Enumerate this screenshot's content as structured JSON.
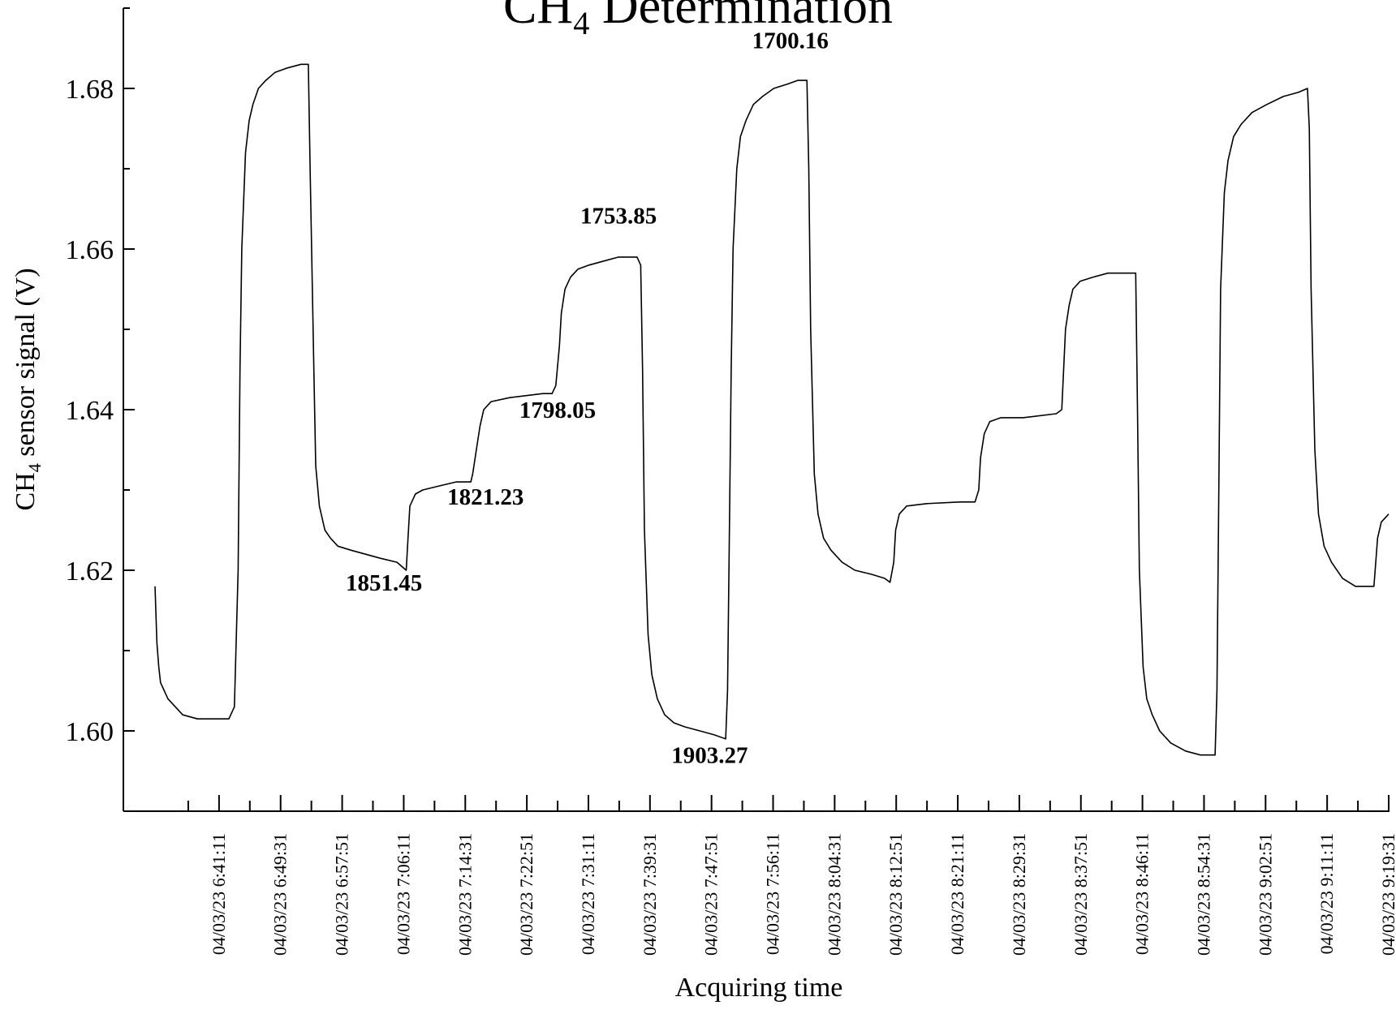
{
  "chart_data": {
    "type": "line",
    "title": {
      "main": "CH",
      "sub": "4",
      "rest": " Determination"
    },
    "xlabel": "Acquiring time",
    "ylabel": {
      "main": "CH",
      "sub": "4",
      "rest": " sensor signal (V)"
    },
    "ylim": [
      1.59,
      1.69
    ],
    "yticks": [
      1.6,
      1.62,
      1.64,
      1.66,
      1.68
    ],
    "ytick_labels": [
      "1.60",
      "1.62",
      "1.64",
      "1.66",
      "1.68"
    ],
    "xlim": [
      "04/03/23 6:32:31",
      "04/03/23 9:19:31"
    ],
    "xtick_labels": [
      "04/03/23 6:41:11",
      "04/03/23 6:49:31",
      "04/03/23 6:57:51",
      "04/03/23 7:06:11",
      "04/03/23 7:14:31",
      "04/03/23 7:22:51",
      "04/03/23 7:31:11",
      "04/03/23 7:39:31",
      "04/03/23 7:47:51",
      "04/03/23 7:56:11",
      "04/03/23 8:04:31",
      "04/03/23 8:12:51",
      "04/03/23 8:21:11",
      "04/03/23 8:29:31",
      "04/03/23 8:37:51",
      "04/03/23 8:46:11",
      "04/03/23 8:54:31",
      "04/03/23 9:02:51",
      "04/03/23 9:11:11",
      "04/03/23 9:19:31"
    ],
    "grid": false,
    "legend": "none",
    "series": [
      {
        "color": "#000000",
        "points": [
          [
            "04/03/23 6:32:31",
            1.618
          ],
          [
            "04/03/23 6:32:46",
            1.611
          ],
          [
            "04/03/23 6:33:01",
            1.608
          ],
          [
            "04/03/23 6:33:16",
            1.606
          ],
          [
            "04/03/23 6:33:46",
            1.605
          ],
          [
            "04/03/23 6:34:16",
            1.604
          ],
          [
            "04/03/23 6:35:16",
            1.603
          ],
          [
            "04/03/23 6:36:16",
            1.602
          ],
          [
            "04/03/23 6:38:16",
            1.6015
          ],
          [
            "04/03/23 6:40:31",
            1.6015
          ],
          [
            "04/03/23 6:42:31",
            1.6015
          ],
          [
            "04/03/23 6:43:16",
            1.603
          ],
          [
            "04/03/23 6:43:46",
            1.62
          ],
          [
            "04/03/23 6:44:01",
            1.645
          ],
          [
            "04/03/23 6:44:16",
            1.66
          ],
          [
            "04/03/23 6:44:46",
            1.672
          ],
          [
            "04/03/23 6:45:16",
            1.676
          ],
          [
            "04/03/23 6:45:46",
            1.678
          ],
          [
            "04/03/23 6:46:31",
            1.68
          ],
          [
            "04/03/23 6:47:31",
            1.681
          ],
          [
            "04/03/23 6:48:46",
            1.682
          ],
          [
            "04/03/23 6:50:16",
            1.6825
          ],
          [
            "04/03/23 6:52:16",
            1.683
          ],
          [
            "04/03/23 6:53:16",
            1.683
          ],
          [
            "04/03/23 6:53:31",
            1.67
          ],
          [
            "04/03/23 6:54:01",
            1.645
          ],
          [
            "04/03/23 6:54:16",
            1.633
          ],
          [
            "04/03/23 6:54:46",
            1.628
          ],
          [
            "04/03/23 6:55:31",
            1.625
          ],
          [
            "04/03/23 6:56:16",
            1.624
          ],
          [
            "04/03/23 6:57:16",
            1.623
          ],
          [
            "04/03/23 6:59:01",
            1.6225
          ],
          [
            "04/03/23 7:01:01",
            1.622
          ],
          [
            "04/03/23 7:03:01",
            1.6215
          ],
          [
            "04/03/23 7:05:16",
            1.621
          ],
          [
            "04/03/23 7:06:31",
            1.62
          ],
          [
            "04/03/23 7:06:46",
            1.624
          ],
          [
            "04/03/23 7:07:01",
            1.628
          ],
          [
            "04/03/23 7:07:46",
            1.6295
          ],
          [
            "04/03/23 7:08:46",
            1.63
          ],
          [
            "04/03/23 7:11:01",
            1.6305
          ],
          [
            "04/03/23 7:13:16",
            1.631
          ],
          [
            "04/03/23 7:14:16",
            1.631
          ],
          [
            "04/03/23 7:15:16",
            1.631
          ],
          [
            "04/03/23 7:15:31",
            1.632
          ],
          [
            "04/03/23 7:16:01",
            1.635
          ],
          [
            "04/03/23 7:16:31",
            1.638
          ],
          [
            "04/03/23 7:17:01",
            1.64
          ],
          [
            "04/03/23 7:18:01",
            1.641
          ],
          [
            "04/03/23 7:20:31",
            1.6415
          ],
          [
            "04/03/23 7:25:01",
            1.642
          ],
          [
            "04/03/23 7:26:16",
            1.642
          ],
          [
            "04/03/23 7:26:46",
            1.643
          ],
          [
            "04/03/23 7:27:16",
            1.648
          ],
          [
            "04/03/23 7:27:31",
            1.652
          ],
          [
            "04/03/23 7:28:01",
            1.655
          ],
          [
            "04/03/23 7:28:46",
            1.6565
          ],
          [
            "04/03/23 7:29:46",
            1.6575
          ],
          [
            "04/03/23 7:31:16",
            1.658
          ],
          [
            "04/03/23 7:33:16",
            1.6585
          ],
          [
            "04/03/23 7:35:16",
            1.659
          ],
          [
            "04/03/23 7:37:46",
            1.659
          ],
          [
            "04/03/23 7:38:16",
            1.658
          ],
          [
            "04/03/23 7:38:31",
            1.645
          ],
          [
            "04/03/23 7:38:46",
            1.625
          ],
          [
            "04/03/23 7:39:16",
            1.612
          ],
          [
            "04/03/23 7:39:46",
            1.607
          ],
          [
            "04/03/23 7:40:31",
            1.604
          ],
          [
            "04/03/23 7:41:31",
            1.602
          ],
          [
            "04/03/23 7:42:46",
            1.601
          ],
          [
            "04/03/23 7:44:16",
            1.6005
          ],
          [
            "04/03/23 7:46:16",
            1.6
          ],
          [
            "04/03/23 7:48:16",
            1.5995
          ],
          [
            "04/03/23 7:49:46",
            1.599
          ],
          [
            "04/03/23 7:50:01",
            1.605
          ],
          [
            "04/03/23 7:50:16",
            1.625
          ],
          [
            "04/03/23 7:50:31",
            1.645
          ],
          [
            "04/03/23 7:50:46",
            1.66
          ],
          [
            "04/03/23 7:51:16",
            1.67
          ],
          [
            "04/03/23 7:51:46",
            1.674
          ],
          [
            "04/03/23 7:52:31",
            1.676
          ],
          [
            "04/03/23 7:53:31",
            1.678
          ],
          [
            "04/03/23 7:54:46",
            1.679
          ],
          [
            "04/03/23 7:56:16",
            1.68
          ],
          [
            "04/03/23 7:58:01",
            1.6805
          ],
          [
            "04/03/23 7:59:31",
            1.681
          ],
          [
            "04/03/23 8:00:46",
            1.681
          ],
          [
            "04/03/23 8:01:01",
            1.67
          ],
          [
            "04/03/23 8:01:16",
            1.65
          ],
          [
            "04/03/23 8:01:46",
            1.632
          ],
          [
            "04/03/23 8:02:16",
            1.627
          ],
          [
            "04/03/23 8:03:01",
            1.624
          ],
          [
            "04/03/23 8:04:01",
            1.6225
          ],
          [
            "04/03/23 8:05:31",
            1.621
          ],
          [
            "04/03/23 8:07:16",
            1.62
          ],
          [
            "04/03/23 8:09:31",
            1.6195
          ],
          [
            "04/03/23 8:11:16",
            1.619
          ],
          [
            "04/03/23 8:12:01",
            1.6185
          ],
          [
            "04/03/23 8:12:31",
            1.621
          ],
          [
            "04/03/23 8:12:46",
            1.625
          ],
          [
            "04/03/23 8:13:16",
            1.627
          ],
          [
            "04/03/23 8:14:16",
            1.628
          ],
          [
            "04/03/23 8:17:01",
            1.6283
          ],
          [
            "04/03/23 8:21:31",
            1.6285
          ],
          [
            "04/03/23 8:23:31",
            1.6285
          ],
          [
            "04/03/23 8:24:01",
            1.63
          ],
          [
            "04/03/23 8:24:16",
            1.634
          ],
          [
            "04/03/23 8:24:46",
            1.637
          ],
          [
            "04/03/23 8:25:31",
            1.6385
          ],
          [
            "04/03/23 8:27:01",
            1.639
          ],
          [
            "04/03/23 8:30:01",
            1.639
          ],
          [
            "04/03/23 8:34:31",
            1.6395
          ],
          [
            "04/03/23 8:35:16",
            1.64
          ],
          [
            "04/03/23 8:35:31",
            1.645
          ],
          [
            "04/03/23 8:35:46",
            1.65
          ],
          [
            "04/03/23 8:36:16",
            1.653
          ],
          [
            "04/03/23 8:36:46",
            1.655
          ],
          [
            "04/03/23 8:37:46",
            1.656
          ],
          [
            "04/03/23 8:39:31",
            1.6565
          ],
          [
            "04/03/23 8:41:31",
            1.657
          ],
          [
            "04/03/23 8:45:16",
            1.657
          ],
          [
            "04/03/23 8:45:31",
            1.64
          ],
          [
            "04/03/23 8:45:46",
            1.62
          ],
          [
            "04/03/23 8:46:16",
            1.608
          ],
          [
            "04/03/23 8:46:46",
            1.604
          ],
          [
            "04/03/23 8:47:31",
            1.602
          ],
          [
            "04/03/23 8:48:31",
            1.6
          ],
          [
            "04/03/23 8:50:01",
            1.5985
          ],
          [
            "04/03/23 8:52:01",
            1.5975
          ],
          [
            "04/03/23 8:54:01",
            1.597
          ],
          [
            "04/03/23 8:56:01",
            1.597
          ],
          [
            "04/03/23 8:56:16",
            1.605
          ],
          [
            "04/03/23 8:56:31",
            1.63
          ],
          [
            "04/03/23 8:56:46",
            1.655
          ],
          [
            "04/03/23 8:57:16",
            1.667
          ],
          [
            "04/03/23 8:57:46",
            1.671
          ],
          [
            "04/03/23 8:58:31",
            1.674
          ],
          [
            "04/03/23 8:59:31",
            1.6755
          ],
          [
            "04/03/23 9:01:01",
            1.677
          ],
          [
            "04/03/23 9:03:01",
            1.678
          ],
          [
            "04/03/23 9:05:16",
            1.679
          ],
          [
            "04/03/23 9:07:16",
            1.6795
          ],
          [
            "04/03/23 9:08:31",
            1.68
          ],
          [
            "04/03/23 9:08:46",
            1.675
          ],
          [
            "04/03/23 9:09:01",
            1.655
          ],
          [
            "04/03/23 9:09:31",
            1.635
          ],
          [
            "04/03/23 9:10:01",
            1.627
          ],
          [
            "04/03/23 9:10:46",
            1.623
          ],
          [
            "04/03/23 9:11:46",
            1.621
          ],
          [
            "04/03/23 9:13:16",
            1.619
          ],
          [
            "04/03/23 9:15:01",
            1.618
          ],
          [
            "04/03/23 9:17:31",
            1.618
          ],
          [
            "04/03/23 9:18:01",
            1.624
          ],
          [
            "04/03/23 9:18:31",
            1.626
          ],
          [
            "04/03/23 9:19:31",
            1.627
          ]
        ]
      }
    ],
    "annotations": [
      {
        "text": "1851.45",
        "x": "04/03/23 7:03:31",
        "y": 1.6175
      },
      {
        "text": "1821.23",
        "x": "04/03/23 7:17:16",
        "y": 1.6282
      },
      {
        "text": "1798.05",
        "x": "04/03/23 7:27:01",
        "y": 1.639
      },
      {
        "text": "1753.85",
        "x": "04/03/23 7:35:16",
        "y": 1.6632
      },
      {
        "text": "1903.27",
        "x": "04/03/23 7:47:36",
        "y": 1.596
      },
      {
        "text": "1700.16",
        "x": "04/03/23 7:58:31",
        "y": 1.685
      }
    ]
  }
}
